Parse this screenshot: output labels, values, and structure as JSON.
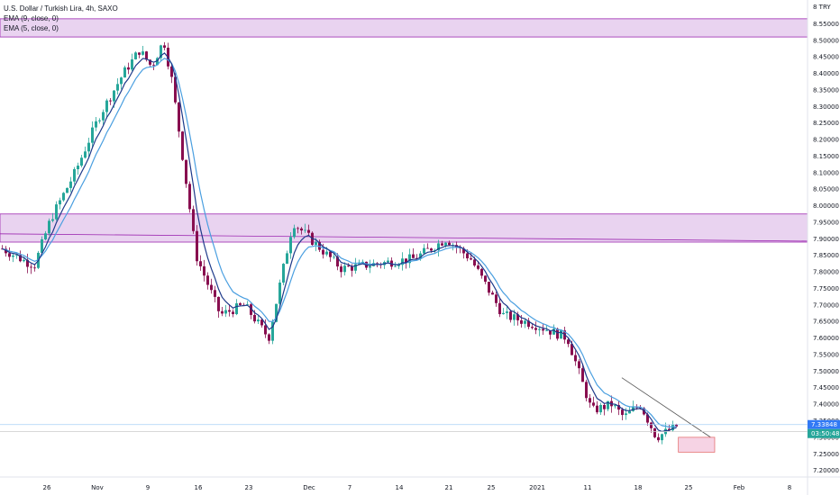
{
  "legend": {
    "symbol": "U.S. Dollar / Turkish Lira, 4h, SAXO",
    "ema9": "EMA (9, close, 0)",
    "ema5": "EMA (5, close, 0)"
  },
  "colors": {
    "up": "#26a69a",
    "down": "#880e4f",
    "candle_wick": "#333333",
    "ema9": "#4a9fe0",
    "ema5": "#1e3a8a",
    "zone_fill": "#e9d3f0",
    "zone_border": "#9c27b0",
    "trendline": "#555555",
    "target_fill": "#f6d3e4",
    "target_border": "#e57373",
    "last_price_label": "#3179f5",
    "countdown_label": "#26a69a"
  },
  "chart_data": {
    "type": "candlestick",
    "yaxis": {
      "ticks": [
        "8.55000",
        "8.50000",
        "8.45000",
        "8.40000",
        "8.35000",
        "8.30000",
        "8.25000",
        "8.20000",
        "8.15000",
        "8.10000",
        "8.05000",
        "8.00000",
        "7.95000",
        "7.90000",
        "7.85000",
        "7.80000",
        "7.75000",
        "7.70000",
        "7.65000",
        "7.60000",
        "7.55000",
        "7.50000",
        "7.45000",
        "7.40000",
        "7.35000",
        "7.30000",
        "7.25000",
        "7.20000"
      ],
      "ylim": [
        7.18,
        8.6
      ],
      "currency": "TRY",
      "currency_prefix": "8"
    },
    "xaxis": {
      "ticks": [
        "26",
        "Nov",
        "9",
        "16",
        "23",
        "Dec",
        "7",
        "14",
        "21",
        "25",
        "2021",
        "11",
        "18",
        "25",
        "Feb",
        "8"
      ]
    },
    "last_price": "7.33848",
    "countdown": "03:50:48",
    "zones": [
      {
        "name": "resistance-zone-top",
        "y_low": 8.51,
        "y_high": 8.565
      },
      {
        "name": "resistance-zone-mid",
        "y_low": 7.89,
        "y_high": 7.975
      }
    ],
    "price_path": [
      [
        0,
        7.87
      ],
      [
        0.03,
        7.83
      ],
      [
        0.04,
        7.82
      ],
      [
        0.06,
        7.96
      ],
      [
        0.09,
        8.1
      ],
      [
        0.12,
        8.27
      ],
      [
        0.15,
        8.4
      ],
      [
        0.17,
        8.47
      ],
      [
        0.185,
        8.42
      ],
      [
        0.2,
        8.5
      ],
      [
        0.21,
        8.38
      ],
      [
        0.225,
        8.12
      ],
      [
        0.24,
        7.85
      ],
      [
        0.27,
        7.67
      ],
      [
        0.3,
        7.7
      ],
      [
        0.33,
        7.6
      ],
      [
        0.36,
        7.95
      ],
      [
        0.39,
        7.88
      ],
      [
        0.42,
        7.81
      ],
      [
        0.45,
        7.82
      ],
      [
        0.48,
        7.83
      ],
      [
        0.51,
        7.84
      ],
      [
        0.55,
        7.9
      ],
      [
        0.58,
        7.84
      ],
      [
        0.62,
        7.67
      ],
      [
        0.66,
        7.64
      ],
      [
        0.7,
        7.6
      ],
      [
        0.73,
        7.38
      ],
      [
        0.755,
        7.4
      ],
      [
        0.77,
        7.36
      ],
      [
        0.79,
        7.4
      ],
      [
        0.81,
        7.3
      ],
      [
        0.84,
        7.34
      ]
    ],
    "trendline": {
      "from": [
        0.77,
        7.48
      ],
      "to": [
        0.88,
        7.3
      ]
    },
    "target_box": {
      "from_x": 0.84,
      "to_x": 0.885,
      "y_high": 7.3,
      "y_low": 7.255
    },
    "last_price_line": 7.33848,
    "last_candle_line": 7.317
  }
}
